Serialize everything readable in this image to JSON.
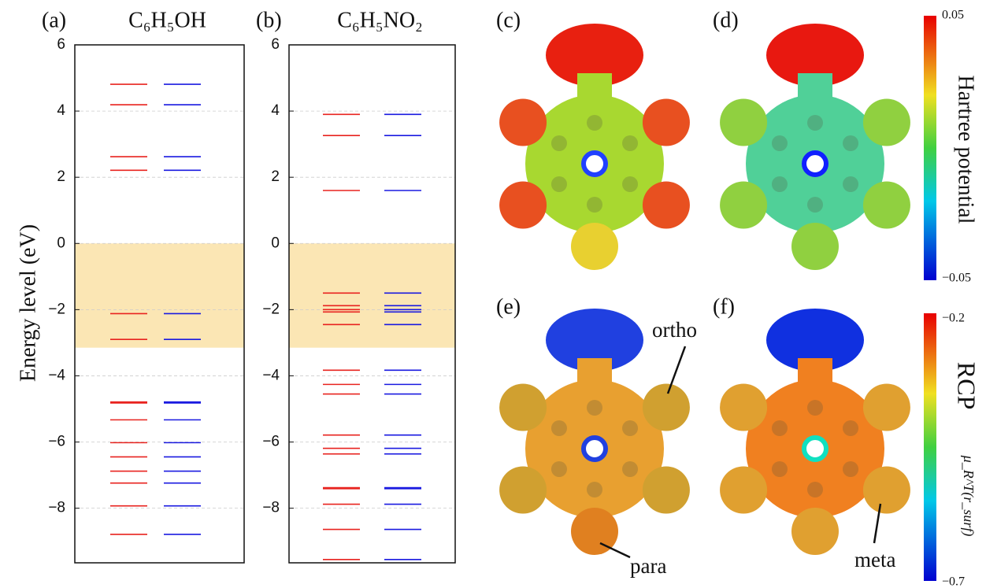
{
  "chart_data": [
    {
      "type": "levels",
      "panel": "(a)",
      "title": "C₆H₅OH",
      "ylabel": "Energy level (eV)",
      "ylim": [
        -9.65,
        6
      ],
      "yticks": [
        {
          "value": -8,
          "label": "−8"
        },
        {
          "value": -6,
          "label": "−6"
        },
        {
          "value": -4,
          "label": "−4"
        },
        {
          "value": -2,
          "label": "−2"
        },
        0,
        2,
        4,
        6
      ],
      "grid": true,
      "band": [
        -3.15,
        0
      ],
      "band_color": "#fbe6b4",
      "series": [
        {
          "color": "#e8231f",
          "values": [
            4.81,
            4.19,
            2.62,
            2.21,
            -2.12,
            -2.9,
            -4.79,
            -4.82,
            -5.33,
            -6.02,
            -6.45,
            -6.88,
            -7.24,
            -7.93,
            -8.79
          ]
        },
        {
          "color": "#1a1ae0",
          "values": [
            4.81,
            4.19,
            2.62,
            2.21,
            -2.12,
            -2.9,
            -4.79,
            -4.82,
            -5.33,
            -6.02,
            -6.45,
            -6.88,
            -7.24,
            -7.93,
            -8.79
          ]
        }
      ]
    },
    {
      "type": "levels",
      "panel": "(b)",
      "title": "C₆H₅NO₂",
      "ylim": [
        -9.65,
        6
      ],
      "yticks": [
        {
          "value": -8,
          "label": "−8"
        },
        {
          "value": -6,
          "label": "−6"
        },
        {
          "value": -4,
          "label": "−4"
        },
        {
          "value": -2,
          "label": "−2"
        },
        0,
        2,
        4,
        6
      ],
      "grid": true,
      "band": [
        -3.15,
        0
      ],
      "band_color": "#fbe6b4",
      "series": [
        {
          "color": "#e8231f",
          "values": [
            3.9,
            3.26,
            1.6,
            -1.5,
            -1.88,
            -2.0,
            -2.07,
            -2.45,
            -3.83,
            -4.26,
            -4.55,
            -5.79,
            -6.19,
            -6.36,
            -7.38,
            -7.41,
            -7.88,
            -8.64,
            -9.55
          ]
        },
        {
          "color": "#1a1ae0",
          "values": [
            3.9,
            3.26,
            1.6,
            -1.5,
            -1.88,
            -2.0,
            -2.07,
            -2.45,
            -3.83,
            -4.26,
            -4.55,
            -5.79,
            -6.19,
            -6.36,
            -7.38,
            -7.41,
            -7.88,
            -8.64,
            -9.55
          ]
        }
      ]
    }
  ],
  "maps": {
    "panels": [
      "(c)",
      "(d)",
      "(e)",
      "(f)"
    ],
    "annotations": [
      "ortho",
      "para",
      "meta"
    ],
    "colorbars": [
      {
        "label": "Hartree potential",
        "clim": [
          {
            "value": -0.05,
            "label": "−0.05"
          },
          0.05
        ]
      },
      {
        "label": "RCP",
        "sublabel": "μ_R^T(r_surf)",
        "clim": [
          {
            "value": -0.7,
            "label": "−0.7"
          },
          {
            "value": -0.2,
            "label": "−0.2"
          }
        ]
      }
    ]
  }
}
